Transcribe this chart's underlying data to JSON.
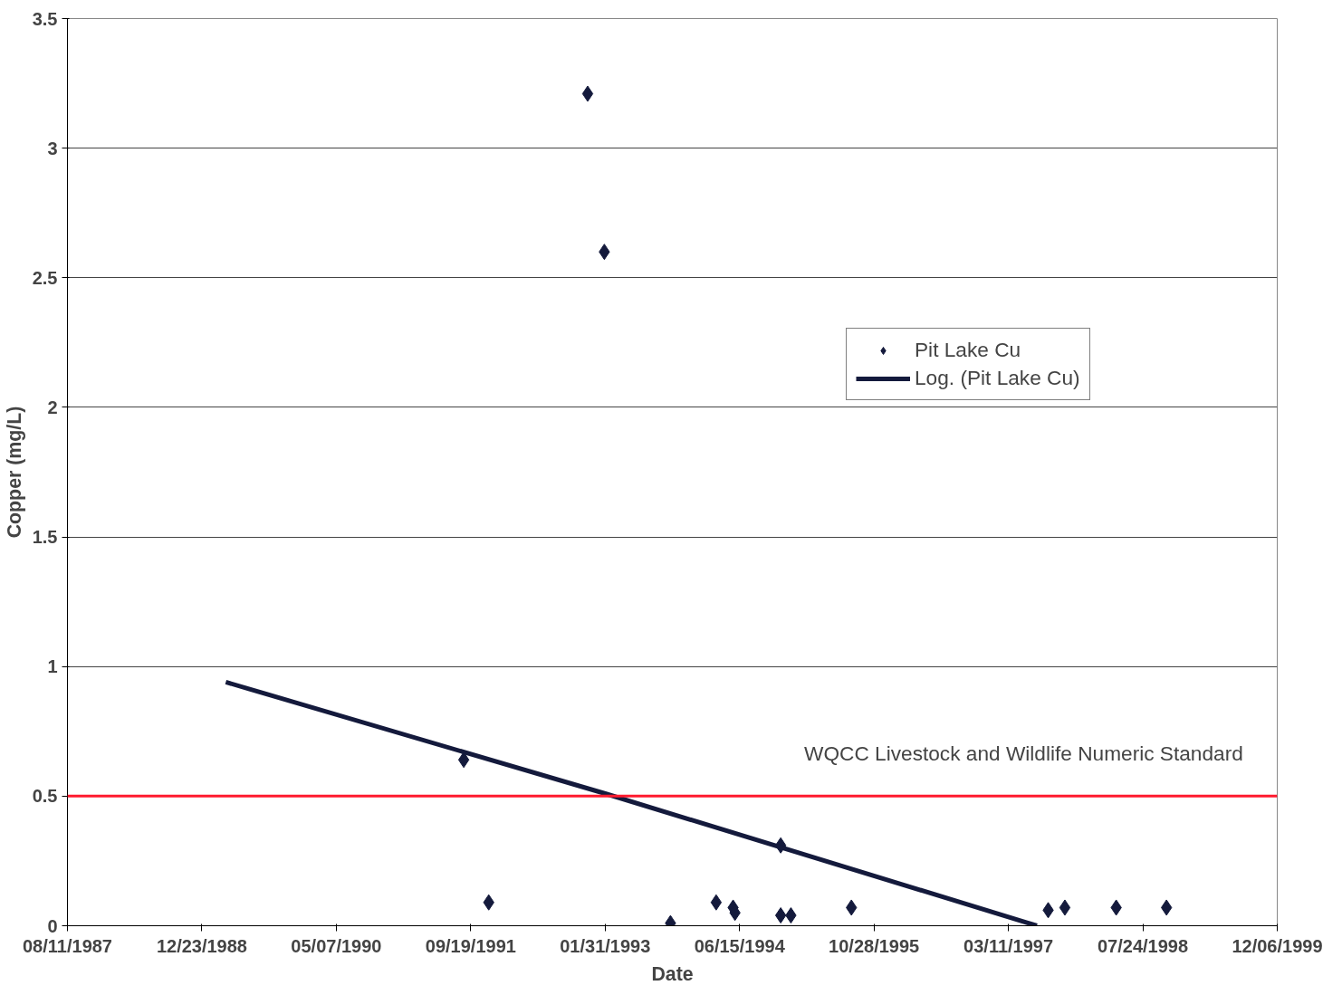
{
  "chart_data": {
    "type": "scatter",
    "xlabel": "Date",
    "ylabel": "Copper (mg/L)",
    "xlim": [
      "1987-08-11",
      "1999-12-06"
    ],
    "xticks": [
      {
        "value": "1987-08-11",
        "label": "08/11/1987"
      },
      {
        "value": "1988-12-23",
        "label": "12/23/1988"
      },
      {
        "value": "1990-05-07",
        "label": "05/07/1990"
      },
      {
        "value": "1991-09-19",
        "label": "09/19/1991"
      },
      {
        "value": "1993-01-31",
        "label": "01/31/1993"
      },
      {
        "value": "1994-06-15",
        "label": "06/15/1994"
      },
      {
        "value": "1995-10-28",
        "label": "10/28/1995"
      },
      {
        "value": "1997-03-11",
        "label": "03/11/1997"
      },
      {
        "value": "1998-07-24",
        "label": "07/24/1998"
      },
      {
        "value": "1999-12-06",
        "label": "12/06/1999"
      }
    ],
    "ylim": [
      0,
      3.5
    ],
    "yticks": [
      0,
      0.5,
      1,
      1.5,
      2,
      2.5,
      3,
      3.5
    ],
    "grid": "y",
    "legend": "right",
    "series": [
      {
        "name": "Pit Lake Cu",
        "marker": "diamond",
        "color": "#141a3c",
        "x": [
          "1991-08-24",
          "1991-11-25",
          "1992-11-27",
          "1993-01-28",
          "1993-10-01",
          "1994-03-20",
          "1994-05-22",
          "1994-05-29",
          "1994-11-15",
          "1994-11-15",
          "1994-12-23",
          "1995-08-05",
          "1997-08-06",
          "1997-10-07",
          "1998-04-16",
          "1998-10-20"
        ],
        "values": [
          0.64,
          0.09,
          3.21,
          2.6,
          0.01,
          0.09,
          0.07,
          0.05,
          0.31,
          0.04,
          0.04,
          0.07,
          0.06,
          0.07,
          0.07,
          0.07
        ]
      },
      {
        "name": "Log. (Pit Lake Cu)",
        "type": "line",
        "color": "#141a3c",
        "x": [
          "1989-03-22",
          "1993-01-31",
          "1997-06-25"
        ],
        "values": [
          0.94,
          0.51,
          0.0
        ]
      }
    ],
    "ref_lines": [
      {
        "axis": "y",
        "value": 0.5,
        "label": "WQCC Livestock and Wildlife Numeric Standard",
        "color": "#ff1a2e"
      }
    ]
  }
}
